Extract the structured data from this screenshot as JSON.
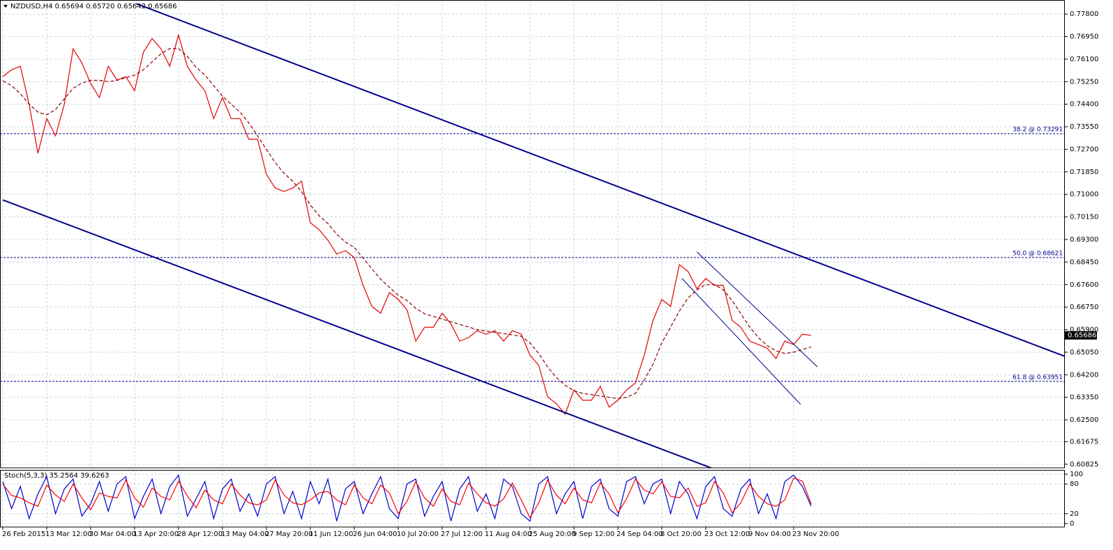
{
  "chart_data": [
    {
      "type": "line",
      "title": "NZDUSD,H4  0.65694 0.65720 0.65642 0.65686",
      "categories": [
        "26 Feb 2015",
        null,
        null,
        null,
        null,
        "13 Mar 12:00",
        null,
        null,
        null,
        null,
        "30 Mar 04:00",
        null,
        null,
        null,
        null,
        "13 Apr 20:00",
        null,
        null,
        null,
        null,
        "28 Apr 12:00",
        null,
        null,
        null,
        null,
        "13 May 04:00",
        null,
        null,
        null,
        null,
        "27 May 20:00",
        null,
        null,
        null,
        null,
        "11 Jun 12:00",
        null,
        null,
        null,
        null,
        "26 Jun 04:00",
        null,
        null,
        null,
        null,
        "10 Jul 20:00",
        null,
        null,
        null,
        null,
        "27 Jul 12:00",
        null,
        null,
        null,
        null,
        "11 Aug 04:00",
        null,
        null,
        null,
        null,
        "25 Aug 20:00",
        null,
        null,
        null,
        null,
        "9 Sep 12:00",
        null,
        null,
        null,
        null,
        "24 Sep 04:00",
        null,
        null,
        null,
        null,
        "8 Oct 20:00",
        null,
        null,
        null,
        null,
        "23 Oct 12:00",
        null,
        null,
        null,
        null,
        "9 Nov 04:00",
        null,
        null,
        null,
        null,
        "23 Nov 20:00",
        null,
        null
      ],
      "series": [
        {
          "color": "#e60000",
          "values": [
            0.7544,
            0.757,
            0.7583,
            0.7439,
            0.7255,
            0.7386,
            0.7321,
            0.7439,
            0.7649,
            0.7596,
            0.7518,
            0.7465,
            0.7583,
            0.7531,
            0.7544,
            0.7491,
            0.7636,
            0.7688,
            0.7649,
            0.7583,
            0.7701,
            0.7583,
            0.7531,
            0.7491,
            0.7386,
            0.7465,
            0.7386,
            0.7386,
            0.7308,
            0.7308,
            0.7176,
            0.7124,
            0.7111,
            0.7124,
            0.715,
            0.6993,
            0.6967,
            0.6927,
            0.6875,
            0.6888,
            0.6862,
            0.6757,
            0.6678,
            0.6652,
            0.673,
            0.6704,
            0.6665,
            0.6547,
            0.6599,
            0.6599,
            0.6652,
            0.6612,
            0.6547,
            0.656,
            0.6586,
            0.6573,
            0.6586,
            0.6547,
            0.6586,
            0.6573,
            0.6494,
            0.6455,
            0.6337,
            0.6311,
            0.6271,
            0.6363,
            0.6324,
            0.6324,
            0.6376,
            0.6298,
            0.6324,
            0.6363,
            0.6389,
            0.6494,
            0.6625,
            0.6704,
            0.6678,
            0.6835,
            0.6809,
            0.6744,
            0.6783,
            0.6757,
            0.6757,
            0.6625,
            0.6599,
            0.6547,
            0.6534,
            0.652,
            0.6481,
            0.6547,
            0.6534,
            0.6573,
            0.65686
          ]
        },
        {
          "color": "#8b0000",
          "dashed": true,
          "values": [
            0.7528,
            0.751,
            0.748,
            0.744,
            0.741,
            0.74,
            0.742,
            0.746,
            0.75,
            0.752,
            0.753,
            0.753,
            0.7525,
            0.753,
            0.754,
            0.755,
            0.757,
            0.76,
            0.763,
            0.765,
            0.765,
            0.762,
            0.758,
            0.755,
            0.751,
            0.747,
            0.744,
            0.741,
            0.737,
            0.732,
            0.727,
            0.722,
            0.718,
            0.715,
            0.711,
            0.706,
            0.702,
            0.699,
            0.695,
            0.692,
            0.69,
            0.686,
            0.682,
            0.678,
            0.675,
            0.672,
            0.67,
            0.667,
            0.665,
            0.664,
            0.663,
            0.662,
            0.661,
            0.66,
            0.659,
            0.6585,
            0.658,
            0.6575,
            0.657,
            0.6565,
            0.654,
            0.65,
            0.645,
            0.641,
            0.638,
            0.636,
            0.635,
            0.6345,
            0.634,
            0.6335,
            0.633,
            0.6335,
            0.635,
            0.64,
            0.646,
            0.654,
            0.66,
            0.666,
            0.671,
            0.674,
            0.676,
            0.676,
            0.674,
            0.67,
            0.665,
            0.66,
            0.656,
            0.653,
            0.651,
            0.65,
            0.6505,
            0.6515,
            0.6525
          ]
        }
      ],
      "ylim": [
        0.6069,
        0.7833
      ],
      "yticks": [
        {
          "value": 0.778,
          "label": "0.77800"
        },
        {
          "value": 0.7695,
          "label": "0.76950"
        },
        {
          "value": 0.761,
          "label": "0.76100"
        },
        {
          "value": 0.7525,
          "label": "0.75250"
        },
        {
          "value": 0.744,
          "label": "0.74400"
        },
        {
          "value": 0.7355,
          "label": "0.73550"
        },
        {
          "value": 0.727,
          "label": "0.72700"
        },
        {
          "value": 0.7185,
          "label": "0.71850"
        },
        {
          "value": 0.71,
          "label": "0.71000"
        },
        {
          "value": 0.7015,
          "label": "0.70150"
        },
        {
          "value": 0.693,
          "label": "0.69300"
        },
        {
          "value": 0.6845,
          "label": "0.68450"
        },
        {
          "value": 0.676,
          "label": "0.67600"
        },
        {
          "value": 0.6675,
          "label": "0.66750"
        },
        {
          "value": 0.659,
          "label": "0.65900"
        },
        {
          "value": 0.6505,
          "label": "0.65050"
        },
        {
          "value": 0.642,
          "label": "0.64200"
        },
        {
          "value": 0.6335,
          "label": "0.63350"
        },
        {
          "value": 0.625,
          "label": "0.62500"
        },
        {
          "value": 0.61675,
          "label": "0.61675"
        },
        {
          "value": 0.60825,
          "label": "0.60825"
        }
      ],
      "grid": true,
      "last_price": 0.65686,
      "levels": [
        {
          "value": 0.73291,
          "label": "38.2 @ 0.73291"
        },
        {
          "value": 0.68621,
          "label": "50.0 @ 0.68621"
        },
        {
          "value": 0.63951,
          "label": "61.8 @ 0.63951"
        }
      ],
      "trendlines": [
        {
          "color": "#00008b",
          "width": 2,
          "x": [
            15.2,
            120.9
          ],
          "y": [
            0.7819,
            0.6489
          ]
        },
        {
          "color": "#00008b",
          "width": 2,
          "x": [
            0,
            80.6
          ],
          "y": [
            0.7079,
            0.6069
          ]
        },
        {
          "color": "#00008b",
          "width": 1,
          "x": [
            79.0,
            92.7
          ],
          "y": [
            0.6883,
            0.645
          ]
        },
        {
          "color": "#00008b",
          "width": 1,
          "x": [
            77.3,
            90.8
          ],
          "y": [
            0.6783,
            0.6308
          ]
        }
      ]
    },
    {
      "type": "line",
      "title": "Stoch(5,3,3) 35.2564 39.6263",
      "series": [
        {
          "color": "#0000cc",
          "values": [
            85,
            30,
            75,
            10,
            60,
            95,
            20,
            70,
            90,
            15,
            40,
            85,
            25,
            80,
            95,
            10,
            55,
            90,
            20,
            75,
            98,
            15,
            50,
            85,
            10,
            70,
            90,
            25,
            60,
            15,
            80,
            95,
            20,
            65,
            10,
            85,
            40,
            90,
            5,
            70,
            85,
            20,
            60,
            95,
            30,
            10,
            80,
            90,
            15,
            55,
            85,
            5,
            70,
            95,
            25,
            60,
            10,
            90,
            75,
            20,
            5,
            80,
            95,
            20,
            60,
            85,
            10,
            75,
            90,
            30,
            15,
            85,
            95,
            40,
            80,
            90,
            20,
            85,
            60,
            10,
            75,
            95,
            30,
            15,
            70,
            90,
            20,
            60,
            10,
            85,
            98,
            75,
            35.2564
          ]
        },
        {
          "color": "#ff0000",
          "values": [
            80,
            57,
            52,
            42,
            35,
            78,
            58,
            45,
            80,
            52,
            28,
            62,
            55,
            52,
            88,
            52,
            33,
            72,
            55,
            48,
            86,
            56,
            32,
            68,
            48,
            40,
            80,
            58,
            42,
            38,
            48,
            88,
            58,
            42,
            38,
            48,
            62,
            65,
            48,
            38,
            78,
            52,
            40,
            78,
            62,
            20,
            45,
            85,
            52,
            35,
            70,
            45,
            38,
            82,
            60,
            42,
            35,
            50,
            82,
            48,
            12,
            42,
            88,
            58,
            40,
            72,
            48,
            42,
            82,
            60,
            22,
            50,
            90,
            68,
            60,
            85,
            55,
            52,
            72,
            35,
            42,
            85,
            62,
            22,
            42,
            80,
            55,
            40,
            35,
            48,
            92,
            86,
            39.6263
          ]
        }
      ],
      "ylim": [
        -7,
        108.5
      ],
      "yticks": [
        0,
        20,
        80,
        100
      ],
      "grid": true
    }
  ]
}
